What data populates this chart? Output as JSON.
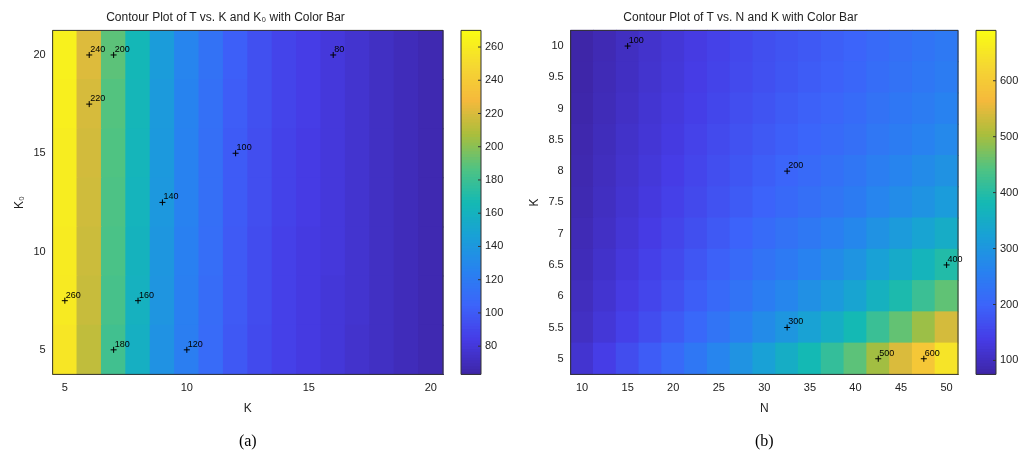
{
  "chart_data": [
    {
      "type": "heatmap",
      "title": "Contour Plot of T vs. K and K₀ with Color Bar",
      "xlabel": "K",
      "ylabel": "K₀",
      "categories": [
        "5",
        null,
        null,
        null,
        null,
        "10",
        null,
        null,
        null,
        null,
        "15",
        null,
        null,
        null,
        null,
        "20"
      ],
      "y_categories": [
        "20",
        null,
        "15",
        null,
        "10",
        null,
        "5"
      ],
      "cells": [
        [
          264,
          222,
          190,
          165,
          143,
          127,
          114,
          102,
          94,
          88,
          84,
          80,
          76,
          72,
          69,
          66
        ],
        [
          263,
          220,
          188,
          164,
          142,
          126,
          113,
          101,
          94,
          88,
          84,
          80,
          76,
          72,
          69,
          66
        ],
        [
          262,
          219,
          187,
          163,
          141,
          125,
          112,
          100,
          93,
          87,
          83,
          80,
          76,
          72,
          69,
          66
        ],
        [
          262,
          218,
          186,
          162,
          140,
          125,
          112,
          100,
          93,
          87,
          83,
          80,
          76,
          72,
          69,
          66
        ],
        [
          261,
          217,
          185,
          161,
          139,
          124,
          111,
          99,
          92,
          86,
          82,
          80,
          76,
          72,
          69,
          66
        ],
        [
          260,
          216,
          184,
          160,
          138,
          123,
          110,
          99,
          92,
          86,
          82,
          79,
          76,
          72,
          69,
          66
        ],
        [
          258,
          214,
          182,
          158,
          136,
          122,
          109,
          98,
          91,
          86,
          82,
          79,
          75,
          72,
          69,
          66
        ]
      ],
      "clim": [
        63,
        270
      ],
      "cticks": [
        80,
        100,
        120,
        140,
        160,
        180,
        200,
        220,
        240,
        260
      ],
      "annotations": [
        "260",
        "240",
        "200",
        "160",
        "120",
        "80",
        "220",
        "180",
        "140",
        "100",
        "(a)"
      ]
    },
    {
      "type": "heatmap",
      "title": "Contour Plot of T vs. N and K with Color Bar",
      "xlabel": "N",
      "ylabel": "K",
      "categories": [
        "10",
        null,
        "15",
        null,
        "20",
        null,
        "25",
        null,
        "30",
        null,
        "35",
        null,
        "40",
        null,
        "45",
        null,
        "50"
      ],
      "y_categories": [
        "10",
        "9.5",
        "9",
        "8.5",
        "8",
        "7.5",
        "7",
        "6.5",
        "6",
        "5.5",
        "5"
      ],
      "cells": [
        [
          75,
          87,
          100,
          111,
          122,
          133,
          144,
          155,
          165,
          173,
          181,
          190,
          199,
          211,
          221,
          231,
          241
        ],
        [
          76,
          89,
          101,
          113,
          124,
          136,
          147,
          158,
          168,
          177,
          185,
          194,
          203,
          216,
          226,
          237,
          247
        ],
        [
          78,
          91,
          104,
          117,
          128,
          140,
          152,
          164,
          174,
          184,
          193,
          202,
          212,
          226,
          237,
          248,
          260
        ],
        [
          81,
          94,
          108,
          120,
          132,
          145,
          158,
          170,
          181,
          191,
          201,
          211,
          221,
          236,
          248,
          260,
          273
        ],
        [
          83,
          97,
          111,
          124,
          137,
          151,
          164,
          177,
          189,
          200,
          210,
          222,
          234,
          251,
          264,
          278,
          293
        ],
        [
          85,
          100,
          115,
          129,
          142,
          156,
          170,
          184,
          197,
          209,
          221,
          233,
          246,
          265,
          280,
          295,
          312
        ],
        [
          89,
          104,
          120,
          135,
          150,
          165,
          181,
          197,
          212,
          226,
          239,
          254,
          270,
          292,
          310,
          330,
          351
        ],
        [
          92,
          109,
          126,
          142,
          158,
          176,
          193,
          211,
          228,
          244,
          260,
          278,
          297,
          323,
          346,
          370,
          397
        ],
        [
          97,
          115,
          133,
          151,
          169,
          189,
          209,
          229,
          249,
          268,
          288,
          309,
          332,
          363,
          391,
          422,
          455
        ],
        [
          102,
          122,
          143,
          163,
          184,
          206,
          230,
          254,
          278,
          301,
          326,
          352,
          382,
          421,
          457,
          496,
          540
        ],
        [
          115,
          138,
          162,
          186,
          210,
          237,
          265,
          294,
          323,
          352,
          382,
          415,
          452,
          500,
          545,
          595,
          650
        ]
      ],
      "clim": [
        75,
        690
      ],
      "cticks": [
        100,
        200,
        300,
        400,
        500,
        600
      ],
      "annotations": [
        "100",
        "200",
        "300",
        "400",
        "500",
        "600",
        "(b)"
      ]
    }
  ]
}
